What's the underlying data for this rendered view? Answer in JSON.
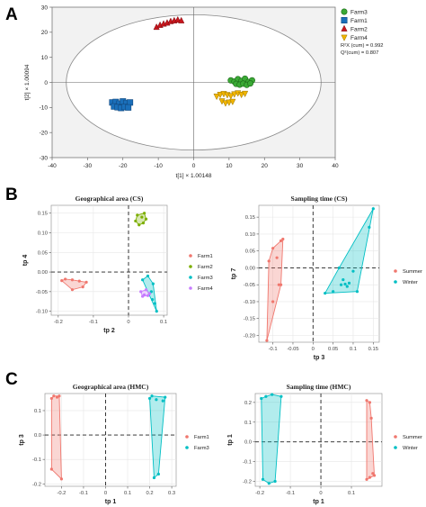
{
  "panel_letters": [
    "A",
    "B",
    "C"
  ],
  "chart_data": [
    {
      "id": "A",
      "type": "scatter",
      "title": "",
      "xlabel": "t[1] × 1.00148",
      "ylabel": "t[2] × 1.00094",
      "xlim": [
        -40,
        40
      ],
      "ylim": [
        -30,
        30
      ],
      "xticks": [
        -40,
        -30,
        -20,
        -10,
        0,
        10,
        20,
        30,
        40
      ],
      "yticks": [
        -30,
        -20,
        -10,
        0,
        10,
        20,
        30
      ],
      "grid": false,
      "legend_position": "top-right",
      "ellipse": {
        "rx": 36,
        "ry": 27
      },
      "stats": [
        "R²X (cum) = 0.992",
        "Q²(cum) = 0.807"
      ],
      "series": [
        {
          "name": "Farm3",
          "marker": "circle",
          "color": "#3aa935",
          "x": [
            10.5,
            11.5,
            12.5,
            13.5,
            14.5,
            15.5,
            16.5,
            12.0,
            13.0,
            14.0,
            15.0,
            16.0
          ],
          "y": [
            0.8,
            0.3,
            1.3,
            0.6,
            1.5,
            0.2,
            0.8,
            -0.6,
            -0.9,
            -0.5,
            -1.0,
            -0.4
          ]
        },
        {
          "name": "Farm1",
          "marker": "square",
          "color": "#1a6fba",
          "x": [
            -23.0,
            -22.0,
            -21.0,
            -20.0,
            -19.0,
            -18.0,
            -22.5,
            -21.5,
            -20.5,
            -19.5,
            -18.5
          ],
          "y": [
            -8.0,
            -7.8,
            -8.5,
            -7.6,
            -8.2,
            -8.0,
            -9.6,
            -9.9,
            -10.2,
            -9.8,
            -10.0
          ]
        },
        {
          "name": "Farm2",
          "marker": "triangle-up",
          "color": "#c8161d",
          "x": [
            -10.5,
            -9.5,
            -8.5,
            -7.5,
            -6.5,
            -5.5,
            -4.5,
            -3.5
          ],
          "y": [
            22.0,
            22.8,
            23.3,
            23.7,
            24.3,
            24.6,
            24.9,
            24.6
          ]
        },
        {
          "name": "Farm4",
          "marker": "triangle-down",
          "color": "#f0b400",
          "x": [
            6.5,
            7.5,
            8.5,
            9.5,
            10.5,
            11.5,
            12.5,
            13.5,
            14.5,
            8.0,
            9.0,
            10.0,
            11.0
          ],
          "y": [
            -5.5,
            -4.8,
            -4.5,
            -4.9,
            -5.3,
            -4.6,
            -4.2,
            -4.8,
            -4.4,
            -7.4,
            -8.2,
            -7.9,
            -7.6
          ]
        }
      ]
    },
    {
      "id": "B1",
      "type": "scatter",
      "title": "Geographical area (CS)",
      "xlabel": "tp 2",
      "ylabel": "tp 4",
      "xlim": [
        -0.22,
        0.11
      ],
      "ylim": [
        -0.11,
        0.17
      ],
      "xticks": [
        -0.2,
        -0.1,
        0.0,
        0.1
      ],
      "ytick_labels": [
        "0.15",
        "0.10",
        "0.05",
        "0.00",
        "-0.05",
        "-0.10"
      ],
      "yticks": [
        0.15,
        0.1,
        0.05,
        0.0,
        -0.05,
        -0.1
      ],
      "grid": true,
      "legend_position": "right",
      "hull_fill": true,
      "series": [
        {
          "name": "Farm1",
          "color": "#f0776e",
          "x": [
            -0.19,
            -0.18,
            -0.16,
            -0.14,
            -0.12,
            -0.16,
            -0.13
          ],
          "y": [
            -0.022,
            -0.018,
            -0.02,
            -0.023,
            -0.026,
            -0.045,
            -0.038
          ]
        },
        {
          "name": "Farm2",
          "color": "#7cae00",
          "x": [
            0.02,
            0.025,
            0.03,
            0.038,
            0.042,
            0.045,
            0.05
          ],
          "y": [
            0.13,
            0.145,
            0.12,
            0.14,
            0.125,
            0.15,
            0.135
          ]
        },
        {
          "name": "Farm3",
          "color": "#00bfc4",
          "x": [
            0.04,
            0.055,
            0.065,
            0.068,
            0.075,
            0.08,
            0.07
          ],
          "y": [
            -0.02,
            -0.01,
            -0.05,
            -0.07,
            -0.08,
            -0.1,
            -0.03
          ]
        },
        {
          "name": "Farm4",
          "color": "#c77cff",
          "x": [
            0.035,
            0.045,
            0.05,
            0.055,
            0.06,
            0.04
          ],
          "y": [
            -0.05,
            -0.058,
            -0.045,
            -0.06,
            -0.055,
            -0.062
          ]
        }
      ]
    },
    {
      "id": "B2",
      "type": "scatter",
      "title": "Sampling time (CS)",
      "xlabel": "tp 3",
      "ylabel": "tp 7",
      "xlim": [
        -0.135,
        0.165
      ],
      "ylim": [
        -0.22,
        0.185
      ],
      "xticks": [
        -0.1,
        -0.05,
        0.0,
        0.05,
        0.1,
        0.15
      ],
      "ytick_labels": [
        "0.15",
        "0.10",
        "0.05",
        "0.00",
        "-0.05",
        "-0.10",
        "-0.15",
        "-0.20"
      ],
      "yticks": [
        0.15,
        0.1,
        0.05,
        0.0,
        -0.05,
        -0.1,
        -0.15,
        -0.2
      ],
      "grid": true,
      "legend_position": "right",
      "hull_fill": true,
      "series": [
        {
          "name": "Summer",
          "color": "#f0776e",
          "x": [
            -0.115,
            -0.1,
            -0.085,
            -0.08,
            -0.075,
            -0.1,
            -0.11,
            -0.09,
            -0.08
          ],
          "y": [
            -0.215,
            -0.1,
            -0.05,
            0.08,
            0.085,
            0.058,
            0.02,
            0.03,
            -0.05
          ]
        },
        {
          "name": "Winter",
          "color": "#00bfc4",
          "x": [
            0.03,
            0.05,
            0.07,
            0.075,
            0.08,
            0.085,
            0.09,
            0.1,
            0.11,
            0.14,
            0.15,
            0.065
          ],
          "y": [
            -0.075,
            -0.07,
            -0.05,
            -0.035,
            -0.048,
            -0.055,
            -0.045,
            -0.01,
            -0.07,
            0.12,
            0.175,
            0.0
          ]
        }
      ]
    },
    {
      "id": "C1",
      "type": "scatter",
      "title": "Geographical area (HMC)",
      "xlabel": "tp 1",
      "ylabel": "tp 3",
      "xlim": [
        -0.275,
        0.32
      ],
      "ylim": [
        -0.21,
        0.17
      ],
      "xticks": [
        -0.2,
        -0.1,
        0.0,
        0.1,
        0.2,
        0.3
      ],
      "ytick_labels": [
        "0.1",
        "0.0",
        "-0.1",
        "-0.2"
      ],
      "yticks": [
        0.1,
        0.0,
        -0.1,
        -0.2
      ],
      "grid": true,
      "legend_position": "right",
      "hull_fill": true,
      "series": [
        {
          "name": "Farm1",
          "color": "#f0776e",
          "x": [
            -0.245,
            -0.235,
            -0.22,
            -0.21,
            -0.245,
            -0.2
          ],
          "y": [
            0.15,
            0.16,
            0.155,
            0.16,
            -0.14,
            -0.18
          ]
        },
        {
          "name": "Farm3",
          "color": "#00bfc4",
          "x": [
            0.2,
            0.21,
            0.23,
            0.26,
            0.27,
            0.24,
            0.22
          ],
          "y": [
            0.15,
            0.16,
            0.145,
            0.14,
            0.155,
            -0.16,
            -0.175
          ]
        }
      ]
    },
    {
      "id": "C2",
      "type": "scatter",
      "title": "Sampling time (HMC)",
      "xlabel": "tp 1",
      "ylabel": "tp 1",
      "xlim": [
        -0.215,
        0.2
      ],
      "ylim": [
        -0.225,
        0.245
      ],
      "xticks": [
        -0.2,
        -0.1,
        0.0,
        0.1
      ],
      "ytick_labels": [
        "0.2",
        "0.1",
        "0.0",
        "-0.1",
        "-0.2"
      ],
      "yticks": [
        0.2,
        0.1,
        0.0,
        -0.1,
        -0.2
      ],
      "grid": true,
      "legend_position": "right",
      "hull_fill": true,
      "series": [
        {
          "name": "Summer",
          "color": "#f0776e",
          "x": [
            0.15,
            0.16,
            0.165,
            0.17,
            0.16,
            0.175,
            0.15
          ],
          "y": [
            0.21,
            0.2,
            0.12,
            -0.16,
            -0.18,
            -0.17,
            -0.19
          ]
        },
        {
          "name": "Winter",
          "color": "#00bfc4",
          "x": [
            -0.195,
            -0.18,
            -0.16,
            -0.13,
            -0.19,
            -0.17,
            -0.15
          ],
          "y": [
            0.22,
            0.23,
            0.24,
            0.23,
            -0.19,
            -0.21,
            -0.2
          ]
        }
      ]
    }
  ]
}
